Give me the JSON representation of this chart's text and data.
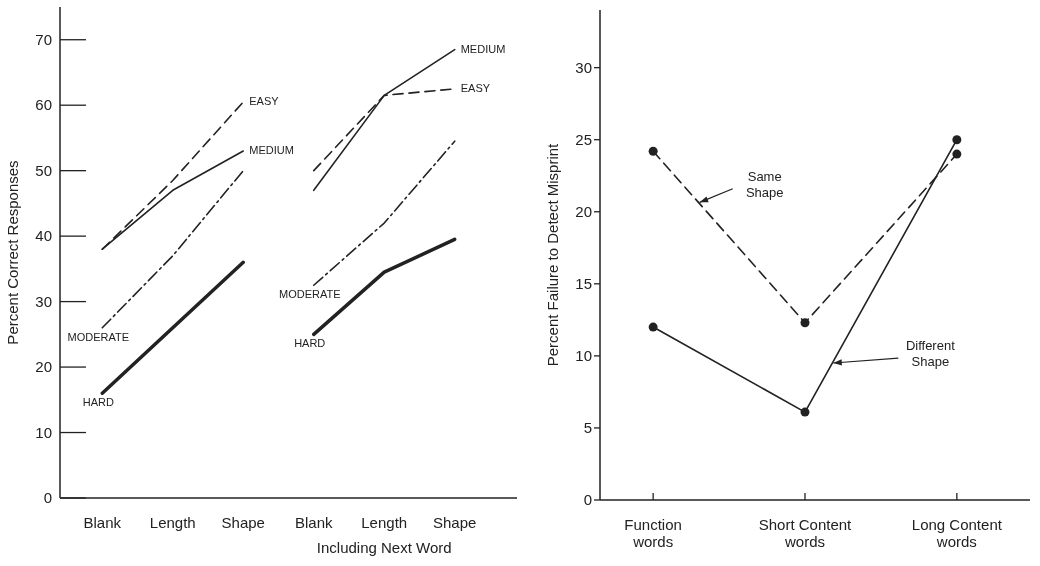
{
  "chart_data": [
    {
      "type": "line",
      "ylabel": "Percent Correct Responses",
      "xlabel": "Including Next Word",
      "categories": [
        "Blank",
        "Length",
        "Shape",
        "Blank",
        "Length",
        "Shape"
      ],
      "series": [
        {
          "name": "EASY",
          "color": "#222222",
          "line_style": "dashed",
          "values": [
            38,
            48.5,
            60.5,
            50,
            61.5,
            62.5
          ]
        },
        {
          "name": "MEDIUM",
          "color": "#222222",
          "line_style": "solid",
          "values": [
            38,
            47,
            53,
            47,
            61.5,
            68.5
          ]
        },
        {
          "name": "MODERATE",
          "color": "#222222",
          "line_style": "dashdot",
          "values": [
            26,
            37,
            50,
            32.5,
            42,
            54.5
          ]
        },
        {
          "name": "HARD",
          "color": "#222222",
          "line_style": "solid",
          "values": [
            16,
            26,
            36,
            25,
            34.5,
            39.5
          ]
        }
      ],
      "ylim": [
        0,
        75
      ],
      "yticks": [
        0,
        10,
        20,
        30,
        40,
        50,
        60,
        70
      ],
      "grid": false,
      "marker": "none"
    },
    {
      "type": "line",
      "ylabel": "Percent Failure to Detect Misprint",
      "categories": [
        "Function words",
        "Short Content words",
        "Long Content words"
      ],
      "series": [
        {
          "name": "Same Shape",
          "color": "#222222",
          "line_style": "dashed",
          "values": [
            24.2,
            12.3,
            24
          ]
        },
        {
          "name": "Different Shape",
          "color": "#222222",
          "line_style": "solid",
          "values": [
            12,
            6.1,
            25
          ]
        }
      ],
      "ylim": [
        0,
        34
      ],
      "yticks": [
        0,
        5,
        10,
        15,
        20,
        25,
        30
      ],
      "grid": false,
      "marker": "circle"
    }
  ]
}
